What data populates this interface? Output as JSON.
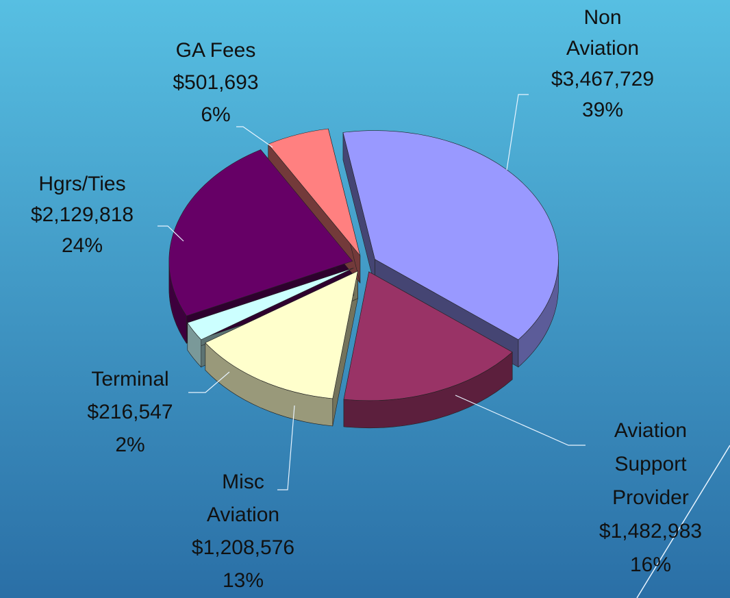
{
  "chart_data": {
    "type": "pie",
    "categories": [
      [
        "Non",
        "Aviation"
      ],
      [
        "Aviation",
        "Support",
        "Provider"
      ],
      [
        "Misc",
        "Aviation"
      ],
      [
        "Terminal"
      ],
      [
        "Hgrs/Ties"
      ],
      [
        "GA Fees"
      ]
    ],
    "values": [
      3467729,
      1482983,
      1208576,
      216547,
      2129818,
      501693
    ],
    "value_labels": [
      "$3,467,729",
      "$1,482,983",
      "$1,208,576",
      "$216,547",
      "$2,129,818",
      "$501,693"
    ],
    "percents": [
      39,
      16,
      13,
      2,
      24,
      6
    ],
    "percent_labels": [
      "39%",
      "16%",
      "13%",
      "2%",
      "24%",
      "6%"
    ],
    "colors": [
      "#9999ff",
      "#993366",
      "#ffffcc",
      "#ccffff",
      "#660066",
      "#ff8080"
    ]
  }
}
